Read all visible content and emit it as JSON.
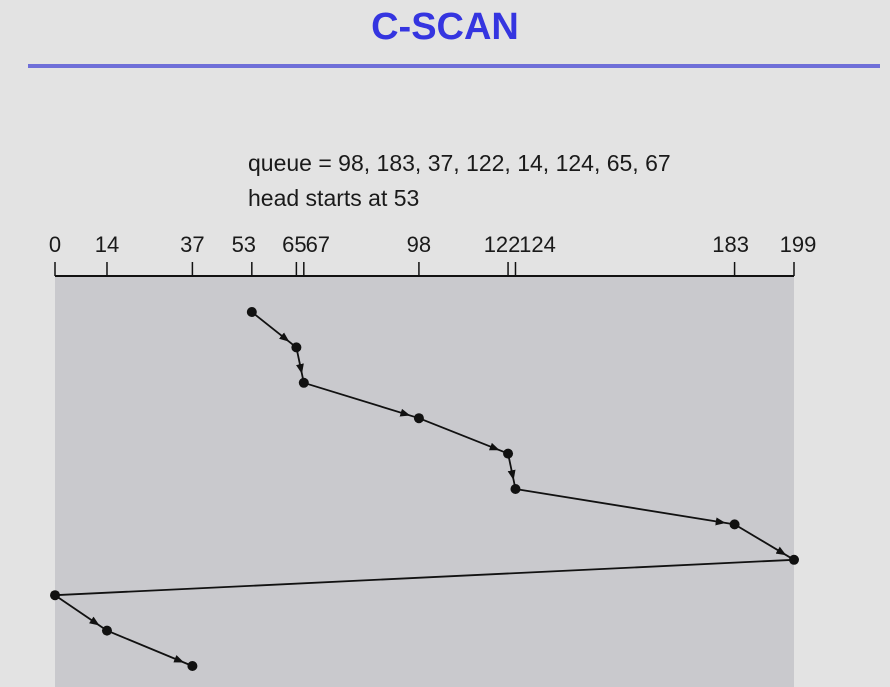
{
  "title": "C-SCAN",
  "queue_line": "queue = 98, 183, 37, 122, 14, 124, 65, 67",
  "head_line": "head starts at 53",
  "chart_data": {
    "type": "line",
    "axis_min": 0,
    "axis_max": 199,
    "tick_labels": [
      "0",
      "14",
      "37",
      "53",
      "65",
      "67",
      "98",
      "122",
      "124",
      "183",
      "199"
    ],
    "sequence": [
      53,
      65,
      67,
      98,
      122,
      124,
      183,
      199,
      0,
      14,
      37
    ]
  },
  "colors": {
    "title": "#3535e0",
    "rule": "#6f6fd8",
    "panel": "#c9c9cd",
    "ink": "#111111"
  }
}
